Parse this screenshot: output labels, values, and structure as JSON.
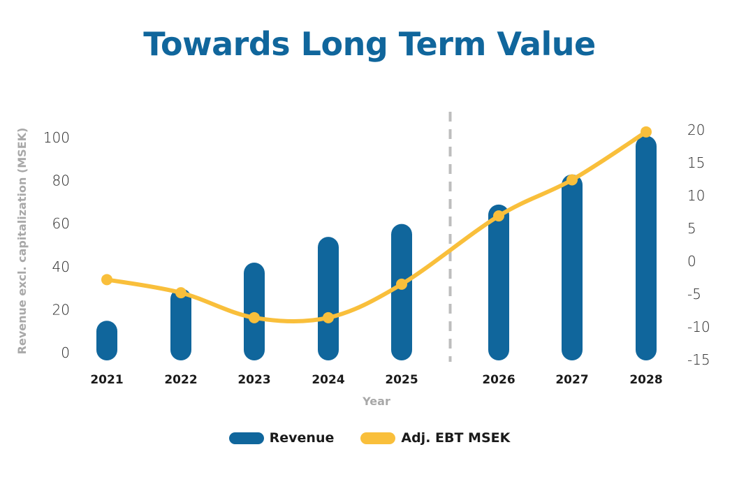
{
  "chart_data": {
    "type": "bar",
    "title": "Towards Long Term Value",
    "xlabel": "Year",
    "ylabel": "Revenue excl. capitalization (MSEK)",
    "categories": [
      "2021",
      "2022",
      "2023",
      "2024",
      "2025",
      "2026",
      "2027",
      "2028"
    ],
    "forecast_divider_after": "2025",
    "series": [
      {
        "name": "Revenue",
        "type": "bar",
        "axis": "left",
        "color": "#10669c",
        "values": [
          10,
          25,
          37,
          49,
          55,
          64,
          78,
          96
        ]
      },
      {
        "name": "Adj. EBT MSEK",
        "type": "line",
        "axis": "right",
        "color": "#f9bf3b",
        "values": [
          -2.8,
          -4.8,
          -8.6,
          -8.6,
          -3.5,
          6.9,
          12.4,
          19.7
        ]
      }
    ],
    "y_left": {
      "range": [
        0,
        100
      ],
      "ticks": [
        0,
        20,
        40,
        60,
        80,
        100
      ]
    },
    "y_right": {
      "range": [
        -15,
        20
      ],
      "ticks": [
        -15,
        -10,
        -5,
        0,
        5,
        10,
        15,
        20
      ]
    },
    "grid": false,
    "legend_position": "bottom"
  },
  "legend": {
    "revenue_label": "Revenue",
    "ebt_label": "Adj. EBT MSEK"
  }
}
